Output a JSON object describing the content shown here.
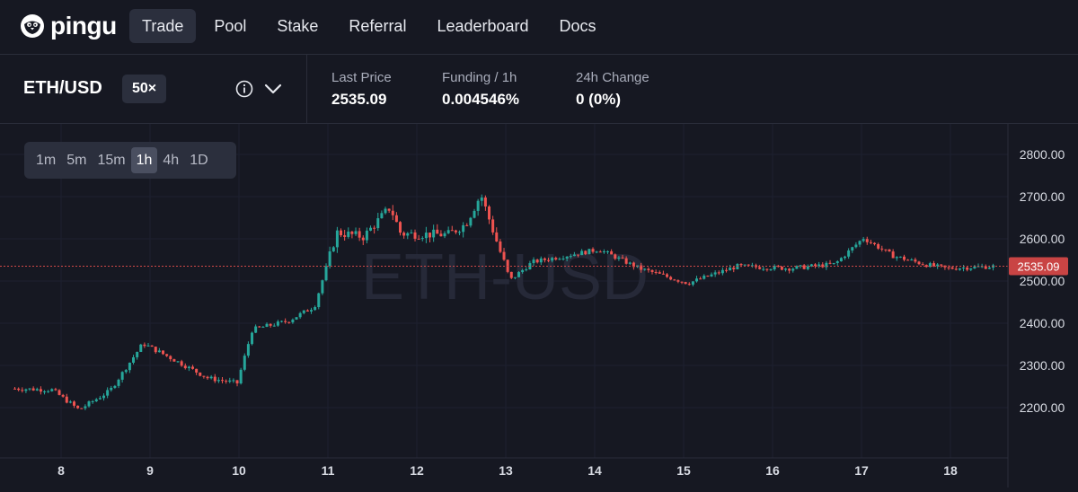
{
  "brand": {
    "name": "pingu"
  },
  "nav": {
    "items": [
      "Trade",
      "Pool",
      "Stake",
      "Referral",
      "Leaderboard",
      "Docs"
    ],
    "active": 0
  },
  "market": {
    "pair": "ETH/USD",
    "leverage": "50×",
    "stats": [
      {
        "label": "Last Price",
        "value": "2535.09"
      },
      {
        "label": "Funding / 1h",
        "value": "0.004546%"
      },
      {
        "label": "24h Change",
        "value": "0 (0%)"
      }
    ]
  },
  "chart": {
    "watermark": "ETH-USD",
    "timeframes": [
      "1m",
      "5m",
      "15m",
      "1h",
      "4h",
      "1D"
    ],
    "active_timeframe": 3,
    "price_tag": "2535.09"
  },
  "chart_data": {
    "type": "candlestick",
    "interval": "1h",
    "x_tick_labels": [
      "8",
      "9",
      "10",
      "11",
      "12",
      "13",
      "14",
      "15",
      "16",
      "17",
      "18"
    ],
    "y_tick_labels": [
      "2200.00",
      "2300.00",
      "2400.00",
      "2500.00",
      "2600.00",
      "2700.00",
      "2800.00"
    ],
    "ylim": [
      2135,
      2825
    ],
    "last_price": 2535.09,
    "price_path_anchors": [
      {
        "day": 7.5,
        "price": 2245
      },
      {
        "day": 7.9,
        "price": 2242
      },
      {
        "day": 8.2,
        "price": 2195
      },
      {
        "day": 8.55,
        "price": 2240
      },
      {
        "day": 8.92,
        "price": 2352
      },
      {
        "day": 9.3,
        "price": 2310
      },
      {
        "day": 9.65,
        "price": 2270
      },
      {
        "day": 9.98,
        "price": 2258
      },
      {
        "day": 10.15,
        "price": 2385
      },
      {
        "day": 10.55,
        "price": 2405
      },
      {
        "day": 10.85,
        "price": 2440
      },
      {
        "day": 11.1,
        "price": 2615
      },
      {
        "day": 11.4,
        "price": 2605
      },
      {
        "day": 11.7,
        "price": 2675
      },
      {
        "day": 11.82,
        "price": 2612
      },
      {
        "day": 12.35,
        "price": 2610
      },
      {
        "day": 12.55,
        "price": 2635
      },
      {
        "day": 12.72,
        "price": 2705
      },
      {
        "day": 12.92,
        "price": 2580
      },
      {
        "day": 13.05,
        "price": 2502
      },
      {
        "day": 13.3,
        "price": 2545
      },
      {
        "day": 14.05,
        "price": 2575
      },
      {
        "day": 14.5,
        "price": 2530
      },
      {
        "day": 15.05,
        "price": 2495
      },
      {
        "day": 15.6,
        "price": 2535
      },
      {
        "day": 16.2,
        "price": 2530
      },
      {
        "day": 16.7,
        "price": 2540
      },
      {
        "day": 17.02,
        "price": 2602
      },
      {
        "day": 17.35,
        "price": 2560
      },
      {
        "day": 17.7,
        "price": 2540
      },
      {
        "day": 17.95,
        "price": 2530
      },
      {
        "day": 18.5,
        "price": 2535
      }
    ],
    "colors": {
      "up": "#26a69a",
      "down": "#ef5350",
      "price_line": "#d04848",
      "price_tag_bg": "#c94444"
    }
  }
}
